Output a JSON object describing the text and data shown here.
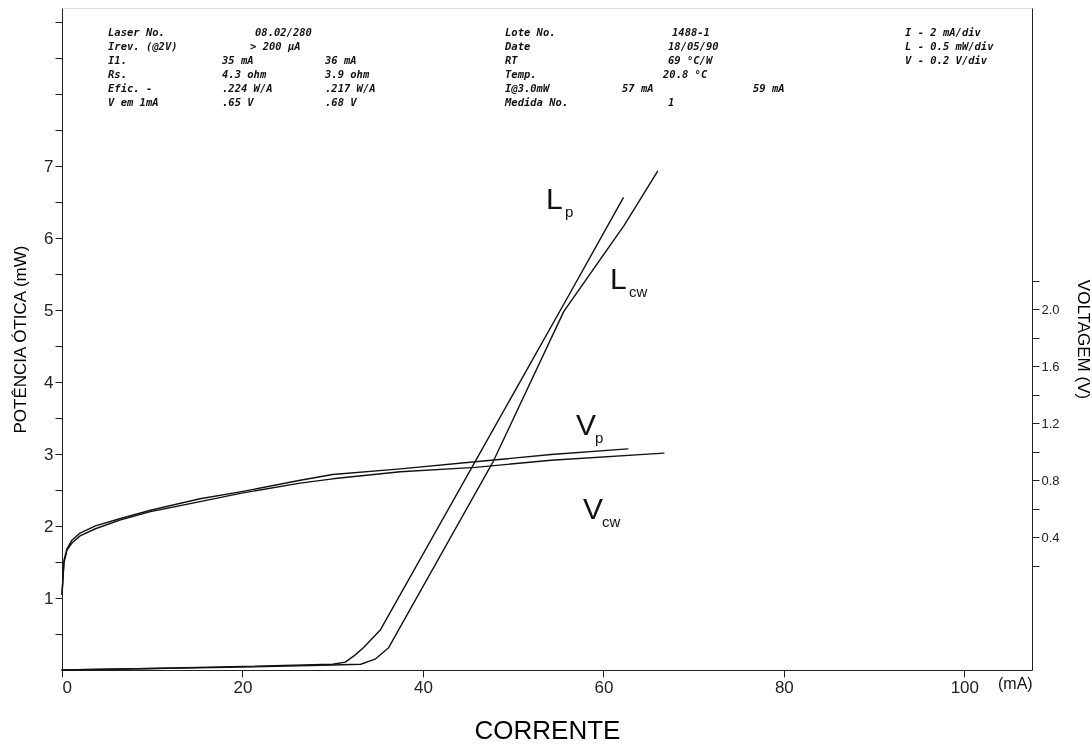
{
  "chart_data": {
    "type": "line",
    "xlabel": "CORRENTE",
    "ylabel": "POTÊNCIA ÓTICA (mW)",
    "y2label": "VOLTAGEM (V)",
    "xlim": [
      0,
      107.5
    ],
    "ylim": [
      0,
      9.2
    ],
    "y2lim": [
      -0.53,
      4.11
    ],
    "xticks": [
      0,
      20,
      40,
      60,
      80,
      100
    ],
    "yticks": [
      {
        "value": 0.5,
        "label": null
      },
      1,
      {
        "value": 1.5,
        "label": null
      },
      2,
      {
        "value": 2.5,
        "label": null
      },
      3,
      {
        "value": 3.5,
        "label": null
      },
      4,
      {
        "value": 4.5,
        "label": null
      },
      5,
      {
        "value": 5.5,
        "label": null
      },
      6,
      {
        "value": 6.5,
        "label": null
      },
      7,
      {
        "value": 7.5,
        "label": null
      },
      {
        "value": 8,
        "label": null
      },
      {
        "value": 8.5,
        "label": null
      },
      {
        "value": 9,
        "label": null
      }
    ],
    "y2ticks": [
      {
        "value": 0.2,
        "label": null
      },
      0.4,
      {
        "value": 0.6,
        "label": null
      },
      0.8,
      {
        "value": 1.0,
        "label": null
      },
      1.2,
      {
        "value": 1.4,
        "label": null
      },
      1.6,
      {
        "value": 1.8,
        "label": null
      },
      {
        "value": 2,
        "label": "2.0"
      },
      {
        "value": 2.2,
        "label": null
      }
    ],
    "grid": false,
    "marker": "none",
    "line_style": "solid",
    "series": [
      {
        "color": "#111111",
        "x": [
          0,
          10,
          20,
          30,
          31.4,
          32.5,
          33.4,
          35.3,
          45.8,
          56.4,
          62.2
        ],
        "values": [
          0,
          0.02,
          0.05,
          0.08,
          0.11,
          0.21,
          0.31,
          0.56,
          2.9,
          5.26,
          6.56
        ]
      },
      {
        "color": "#111111",
        "x": [
          0,
          10,
          20,
          30,
          33.1,
          34.7,
          36.2,
          47.8,
          55.6,
          62.3,
          66.0
        ],
        "values": [
          0,
          0.02,
          0.04,
          0.07,
          0.08,
          0.15,
          0.31,
          2.9,
          4.98,
          6.18,
          6.93
        ]
      },
      {
        "axis": "y2",
        "color": "#111111",
        "x": [
          0,
          0.22,
          0.55,
          1.1,
          2.0,
          3.7,
          6.4,
          9.8,
          15.3,
          19.9,
          26.4,
          30.0,
          37.5,
          45.8,
          54.2,
          62.7
        ],
        "values": [
          0,
          0.24,
          0.32,
          0.38,
          0.43,
          0.48,
          0.53,
          0.59,
          0.67,
          0.72,
          0.8,
          0.84,
          0.88,
          0.93,
          0.98,
          1.02
        ]
      },
      {
        "axis": "y2",
        "color": "#111111",
        "x": [
          0,
          0.22,
          0.55,
          1.1,
          2.0,
          3.7,
          6.4,
          9.8,
          15.3,
          19.9,
          26.4,
          30.0,
          37.5,
          45.8,
          54.2,
          66.7
        ],
        "values": [
          0,
          0.22,
          0.31,
          0.36,
          0.41,
          0.46,
          0.52,
          0.58,
          0.65,
          0.71,
          0.78,
          0.81,
          0.86,
          0.89,
          0.94,
          0.99
        ]
      }
    ],
    "annotations": [
      "L$_{p}$",
      "L$_{cw}$",
      "V$_{p}$",
      "V$_{cw}$",
      "Laser No.",
      "08.02/280",
      "Lote No.",
      "1488-1",
      "I - 2 mA/div",
      "Irev. (@2V)",
      "> 200 µA",
      "Date",
      "18/05/90",
      "L - 0.5 mW/div",
      "I1.",
      "35 mA",
      "36 mA",
      "RT",
      "69 °C/W",
      "V - 0.2 V/div",
      "Rs.",
      "4.3 ohm",
      "3.9 ohm",
      "Temp.",
      "20.8 °C",
      "Efic. -",
      ".224 W/A",
      ".217 W/A",
      "I@3.0mW",
      "57 mA",
      "59 mA",
      "V em 1mA",
      ".65 V",
      ".68 V",
      "Medida No.",
      "1",
      "(mA)"
    ]
  }
}
